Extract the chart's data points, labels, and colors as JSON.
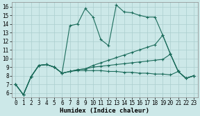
{
  "xlabel": "Humidex (Indice chaleur)",
  "background_color": "#cce8e8",
  "line_color": "#1a6b5a",
  "xlim": [
    -0.5,
    23.5
  ],
  "ylim": [
    5.5,
    16.5
  ],
  "xticks": [
    0,
    1,
    2,
    3,
    4,
    5,
    6,
    7,
    8,
    9,
    10,
    11,
    12,
    13,
    14,
    15,
    16,
    17,
    18,
    19,
    20,
    21,
    22,
    23
  ],
  "yticks": [
    6,
    7,
    8,
    9,
    10,
    11,
    12,
    13,
    14,
    15,
    16
  ],
  "lines": [
    [
      7.0,
      5.8,
      7.9,
      9.2,
      9.3,
      9.0,
      8.3,
      13.8,
      14.0,
      15.8,
      14.8,
      12.2,
      11.5,
      16.2,
      15.4,
      15.3,
      15.0,
      14.8,
      14.8,
      12.7,
      10.5,
      8.5,
      7.7,
      8.0
    ],
    [
      7.0,
      5.8,
      7.9,
      9.2,
      9.3,
      9.0,
      8.3,
      8.5,
      8.7,
      8.8,
      9.2,
      9.5,
      9.8,
      10.1,
      10.4,
      10.7,
      11.0,
      11.3,
      11.6,
      12.7,
      10.5,
      8.5,
      7.7,
      8.0
    ],
    [
      7.0,
      5.8,
      7.9,
      9.2,
      9.3,
      9.0,
      8.3,
      8.5,
      8.7,
      8.8,
      9.0,
      9.1,
      9.2,
      9.3,
      9.4,
      9.5,
      9.6,
      9.7,
      9.8,
      9.9,
      10.5,
      8.5,
      7.7,
      8.0
    ],
    [
      7.0,
      5.8,
      7.9,
      9.2,
      9.3,
      9.0,
      8.3,
      8.5,
      8.6,
      8.6,
      8.6,
      8.6,
      8.5,
      8.5,
      8.4,
      8.4,
      8.3,
      8.3,
      8.2,
      8.2,
      8.1,
      8.5,
      7.7,
      8.0
    ]
  ],
  "grid_color": "#aacece",
  "tick_fontsize": 5.5,
  "xlabel_fontsize": 6.5,
  "linewidth": 0.8,
  "markersize": 2.5
}
